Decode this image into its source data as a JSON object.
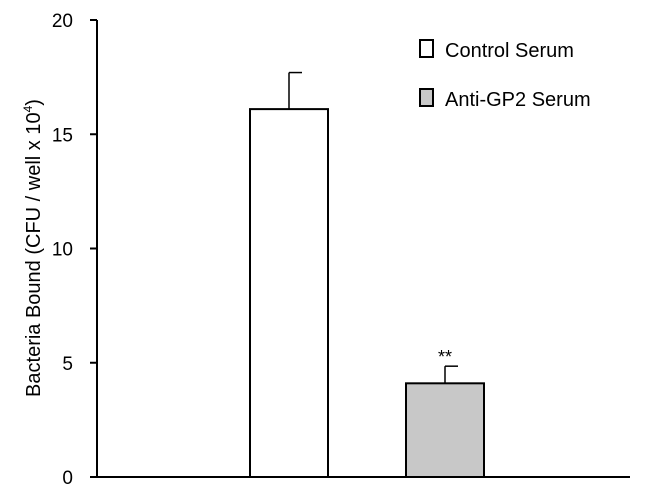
{
  "chart_data": {
    "type": "bar",
    "categories": [
      "Control Serum",
      "Anti-GP2 Serum"
    ],
    "values": [
      16.1,
      4.1
    ],
    "errors": [
      1.6,
      0.75
    ],
    "ylabel_main": "Bacteria Bound (CFU / well x 10",
    "ylabel_sup": "4",
    "ylabel_close": ")",
    "ylim": [
      0,
      20
    ],
    "yticks": [
      "0",
      "5",
      "10",
      "15",
      "20"
    ],
    "legend": {
      "placement": "top-right",
      "entries": [
        {
          "label": "Control Serum",
          "color": "#ffffff"
        },
        {
          "label": "Anti-GP2 Serum",
          "color": "#c8c8c8"
        }
      ]
    },
    "annotations": [
      {
        "bar_index": 1,
        "text": "**"
      }
    ],
    "colors": {
      "control": "#ffffff",
      "anti": "#c8c8c8",
      "stroke": "#000000"
    }
  }
}
